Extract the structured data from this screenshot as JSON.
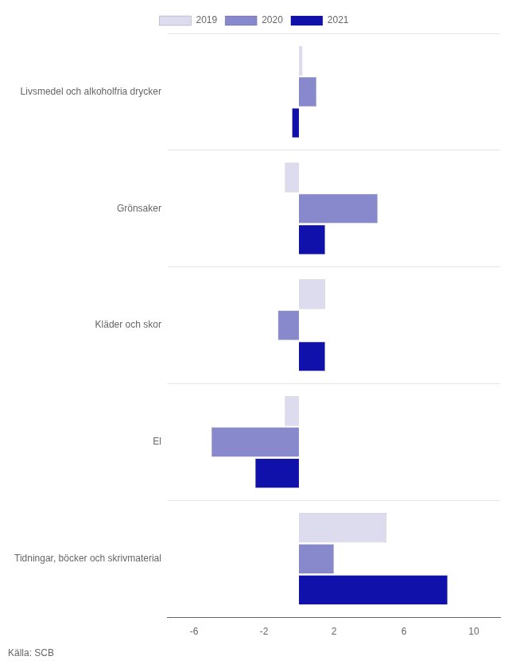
{
  "chart_data": {
    "type": "bar",
    "orientation": "horizontal",
    "categories": [
      "Livsmedel och alkoholfria drycker",
      "Grönsaker",
      "Kläder och skor",
      "El",
      "Tidningar, böcker och skrivmaterial"
    ],
    "series": [
      {
        "name": "2019",
        "color": "#dcdcee",
        "values": [
          0.2,
          -0.8,
          1.5,
          -0.8,
          5.0
        ]
      },
      {
        "name": "2020",
        "color": "#8888cc",
        "values": [
          1.0,
          4.5,
          -1.2,
          -5.0,
          2.0
        ]
      },
      {
        "name": "2021",
        "color": "#1010aa",
        "values": [
          -0.4,
          1.5,
          1.5,
          -2.5,
          8.5
        ]
      }
    ],
    "xlim": [
      -7.5,
      11.5
    ],
    "xticks": [
      -6,
      -2,
      2,
      6,
      10
    ],
    "grid": true,
    "legend": "top",
    "annotations": [
      "Källa: SCB"
    ]
  }
}
